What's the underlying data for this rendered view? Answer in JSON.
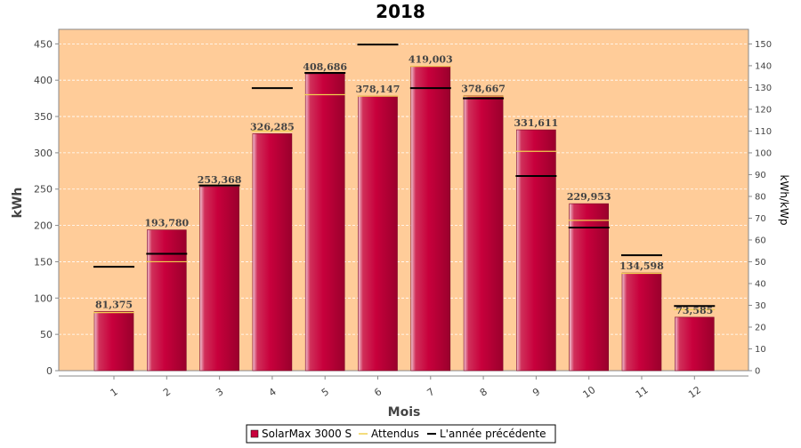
{
  "chart_data": {
    "type": "bar",
    "title": "2018",
    "xlabel": "Mois",
    "ylabel": "kWh",
    "y2label": "kWh/kWp",
    "categories": [
      "1",
      "2",
      "3",
      "4",
      "5",
      "6",
      "7",
      "8",
      "9",
      "10",
      "11",
      "12"
    ],
    "ylim": [
      0,
      470
    ],
    "y2lim": [
      0,
      156.7
    ],
    "yticks": [
      0,
      50,
      100,
      150,
      200,
      250,
      300,
      350,
      400,
      450
    ],
    "y2ticks": [
      0,
      10,
      20,
      30,
      40,
      50,
      60,
      70,
      80,
      90,
      100,
      110,
      120,
      130,
      140,
      150
    ],
    "grid": true,
    "legend_position": "bottom",
    "series": [
      {
        "name": "SolarMax 3000 S",
        "kind": "bar",
        "color": "#c8003c",
        "values": [
          81.375,
          193.78,
          253.368,
          326.285,
          408.686,
          378.147,
          419.003,
          378.667,
          331.611,
          229.953,
          134.598,
          73.585
        ],
        "labels": [
          "81,375",
          "193,780",
          "253,368",
          "326,285",
          "408,686",
          "378,147",
          "419,003",
          "378,667",
          "331,611",
          "229,953",
          "134,598",
          "73,585"
        ]
      },
      {
        "name": "Attendus",
        "kind": "marker",
        "color": "#f0d050",
        "values": [
          80,
          150,
          255,
          330,
          380,
          378,
          419,
          378,
          302,
          207,
          134,
          84
        ]
      },
      {
        "name": "L'année précédente",
        "kind": "marker",
        "color": "#000000",
        "values": [
          143,
          161,
          255,
          389,
          410,
          449,
          389,
          375,
          268,
          197,
          159,
          89
        ]
      }
    ]
  },
  "colors": {
    "plot_background": "#ffcc99",
    "frame": "#888888",
    "grid": "#ffffff"
  }
}
